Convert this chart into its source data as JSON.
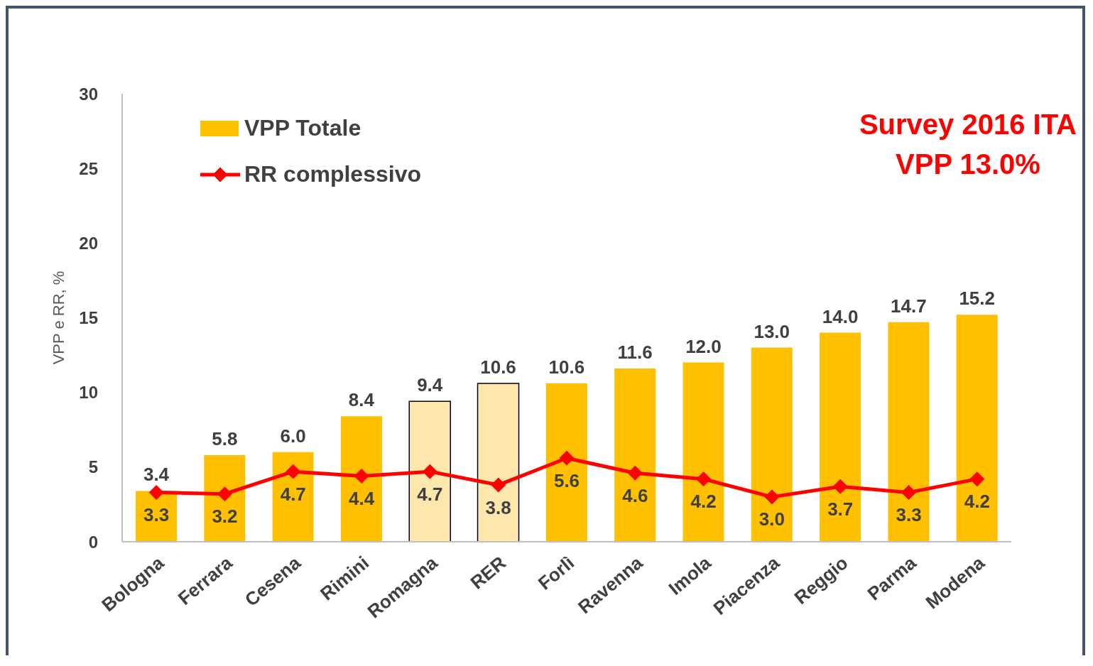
{
  "chart_data": {
    "type": "bar",
    "ylabel": "VPP e RR, %",
    "categories": [
      "Bologna",
      "Ferrara",
      "Cesena",
      "Rimini",
      "Romagna",
      "RER",
      "Forlì",
      "Ravenna",
      "Imola",
      "Piacenza",
      "Reggio",
      "Parma",
      "Modena"
    ],
    "series": [
      {
        "name": "VPP Totale",
        "color": "#ffc000",
        "value_labels": [
          "3.4",
          "5.8",
          "6.0",
          "8.4",
          "9.4",
          "10.6",
          "10.6",
          "11.6",
          "12.0",
          "13.0",
          "14.0",
          "14.7",
          "15.2"
        ],
        "colors": [
          "#ffc000",
          "#ffc000",
          "#ffc000",
          "#ffc000",
          "#fde7ad",
          "#fde7ad",
          "#ffc000",
          "#ffc000",
          "#ffc000",
          "#ffc000",
          "#ffc000",
          "#ffc000",
          "#ffc000"
        ],
        "values": [
          3.4,
          5.8,
          6.0,
          8.4,
          9.4,
          10.6,
          10.6,
          11.6,
          12.0,
          13.0,
          14.0,
          14.7,
          15.2
        ]
      },
      {
        "name": "RR complessivo",
        "type": "line",
        "color": "#ff0000",
        "value_labels": [
          "3.3",
          "3.2",
          "4.7",
          "4.4",
          "4.7",
          "3.8",
          "5.6",
          "4.6",
          "4.2",
          "3.0",
          "3.7",
          "3.3",
          "4.2"
        ],
        "values": [
          3.3,
          3.2,
          4.7,
          4.4,
          4.7,
          3.8,
          5.6,
          4.6,
          4.2,
          3.0,
          3.7,
          3.3,
          4.2
        ]
      }
    ],
    "ylim": [
      0,
      30
    ],
    "yticks": [
      0,
      5,
      10,
      15,
      20,
      25,
      30
    ],
    "legend": "top left",
    "marker": "diamond",
    "line_style": "solid",
    "annotations": [
      "Survey 2016 ITA",
      "VPP 13.0%"
    ]
  }
}
